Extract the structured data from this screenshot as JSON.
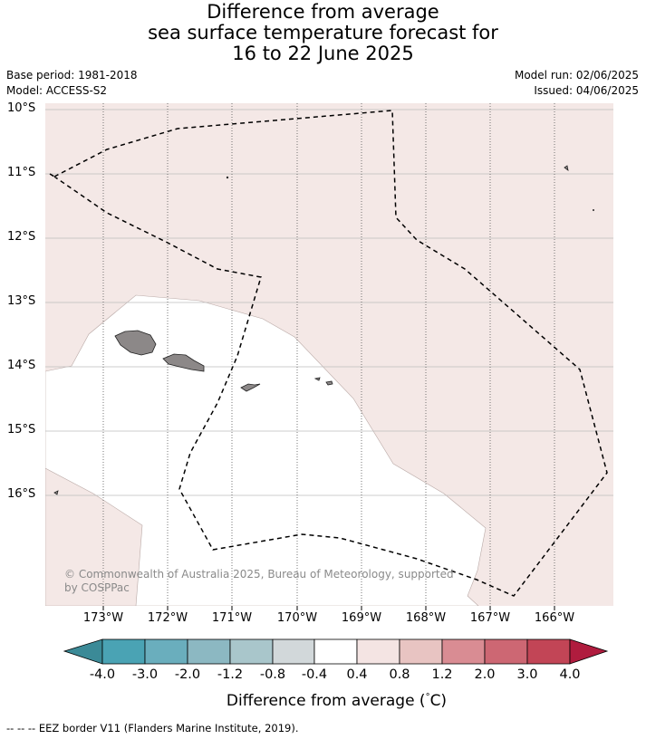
{
  "title": {
    "line1": "Difference from average",
    "line2": "sea surface temperature forecast for",
    "line3": "16 to 22 June 2025"
  },
  "meta": {
    "base_period": "Base period: 1981-2018",
    "model": "Model: ACCESS-S2",
    "model_run": "Model run: 02/06/2025",
    "issued": "Issued: 04/06/2025"
  },
  "map": {
    "lat_labels": [
      "10°S",
      "11°S",
      "12°S",
      "13°S",
      "14°S",
      "15°S",
      "16°S"
    ],
    "lon_labels": [
      "173°W",
      "172°W",
      "171°W",
      "170°W",
      "169°W",
      "168°W",
      "167°W",
      "166°W"
    ],
    "copyright_line1": "© Commonwealth of Australia 2025, Bureau of Meteorology, supported",
    "copyright_line2": "by COSPPac",
    "colors": {
      "warm_anomaly": "#f4e8e6",
      "neutral": "#ffffff",
      "land": "#8c8888"
    }
  },
  "colorbar": {
    "ticks": [
      "-4.0",
      "-3.0",
      "-2.0",
      "-1.2",
      "-0.8",
      "-0.4",
      "0.4",
      "0.8",
      "1.2",
      "2.0",
      "3.0",
      "4.0"
    ],
    "colors": [
      "#3b8a97",
      "#4aa3b4",
      "#6aaebd",
      "#8cb8c2",
      "#a9c6cb",
      "#d2d8da",
      "#ffffff",
      "#f4e4e3",
      "#e8c4c2",
      "#d98c93",
      "#cd6773",
      "#c24556",
      "#b01c3e"
    ],
    "title": "Difference from average (°C)",
    "title_prefix": "Difference from average (",
    "title_degree": "°",
    "title_suffix": "C)"
  },
  "legend": {
    "eez_line": "-- -- -- EEZ border V11 (Flanders Marine Institute, 2019)."
  }
}
